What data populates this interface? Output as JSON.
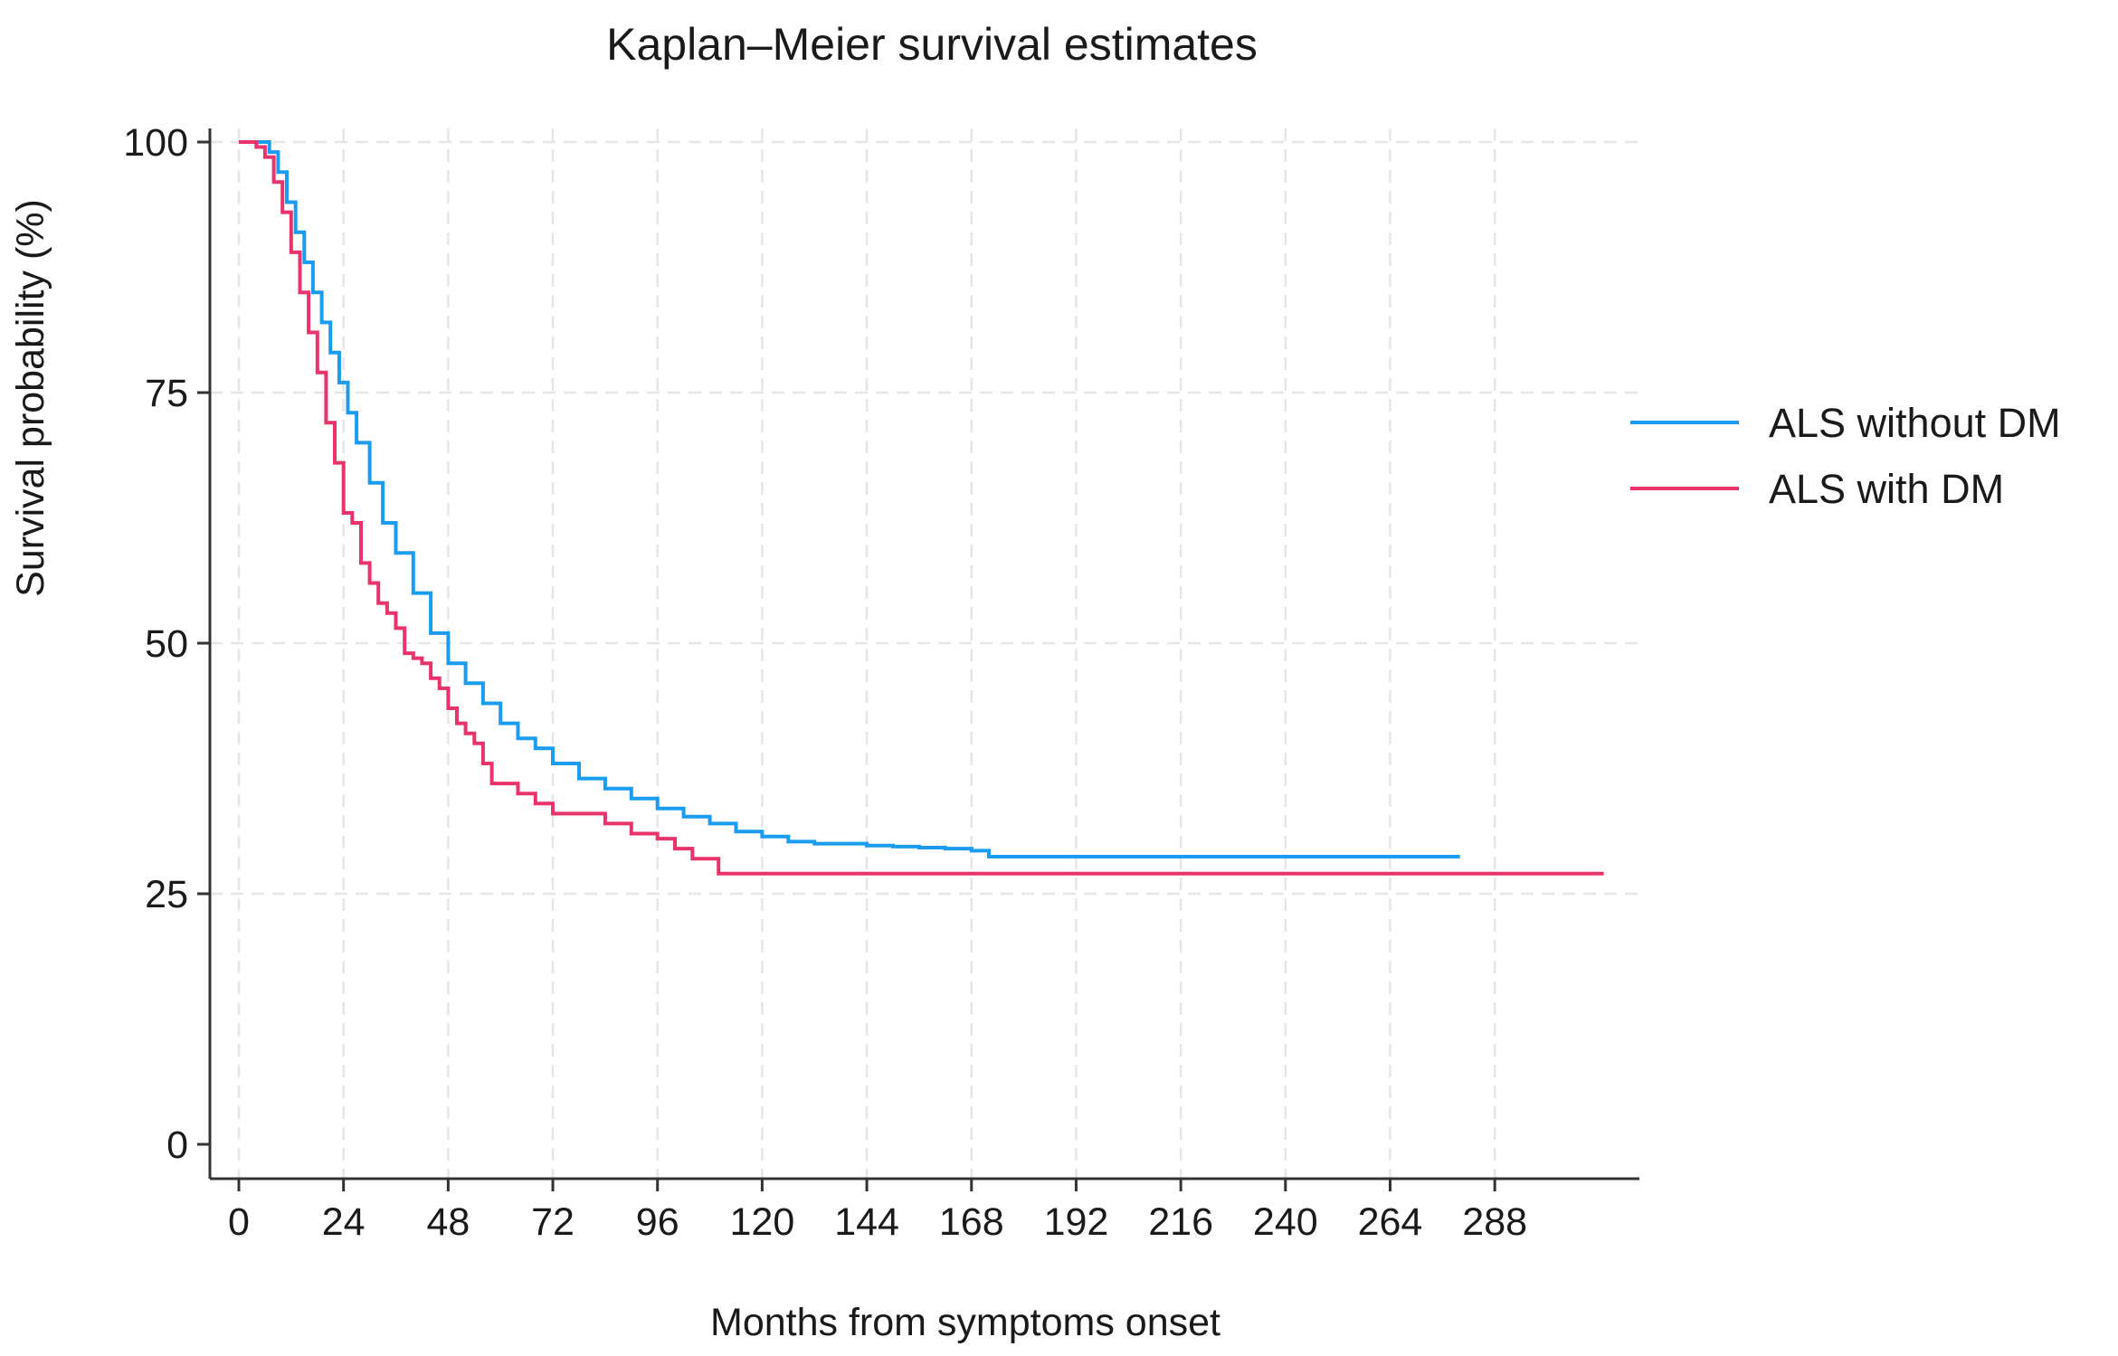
{
  "chart_data": {
    "type": "line",
    "step": true,
    "title": "Kaplan–Meier survival estimates",
    "xlabel": "Months from symptoms onset",
    "ylabel": "Survival probability (%)",
    "xlim": [
      0,
      315
    ],
    "ylim": [
      0,
      100
    ],
    "x_ticks": [
      0,
      24,
      48,
      72,
      96,
      120,
      144,
      168,
      192,
      216,
      240,
      264,
      288
    ],
    "y_ticks": [
      0,
      25,
      50,
      75,
      100
    ],
    "grid": true,
    "legend_position": "right",
    "series": [
      {
        "name": "ALS without DM",
        "color": "#1a9cf0",
        "x": [
          0,
          5,
          7,
          9,
          11,
          13,
          15,
          17,
          19,
          21,
          23,
          25,
          27,
          30,
          33,
          36,
          40,
          44,
          48,
          52,
          56,
          60,
          64,
          68,
          72,
          78,
          84,
          90,
          96,
          102,
          108,
          114,
          120,
          126,
          132,
          138,
          144,
          150,
          156,
          162,
          168,
          172,
          180,
          200,
          240,
          280
        ],
        "y": [
          100,
          100,
          99,
          97,
          94,
          91,
          88,
          85,
          82,
          79,
          76,
          73,
          70,
          66,
          62,
          59,
          55,
          51,
          48,
          46,
          44,
          42,
          40.5,
          39.5,
          38,
          36.5,
          35.5,
          34.5,
          33.5,
          32.7,
          32,
          31.2,
          30.7,
          30.2,
          30,
          30,
          29.8,
          29.7,
          29.6,
          29.5,
          29.3,
          28.7,
          28.7,
          28.7,
          28.7,
          28.7
        ]
      },
      {
        "name": "ALS with DM",
        "color": "#e8336b",
        "x": [
          0,
          2,
          4,
          6,
          8,
          10,
          12,
          14,
          16,
          18,
          20,
          22,
          24,
          26,
          28,
          30,
          32,
          34,
          36,
          38,
          40,
          42,
          44,
          46,
          48,
          50,
          52,
          54,
          56,
          58,
          60,
          64,
          68,
          72,
          76,
          84,
          90,
          96,
          100,
          104,
          110,
          130,
          170,
          250,
          313
        ],
        "y": [
          100,
          100,
          99.5,
          98.5,
          96,
          93,
          89,
          85,
          81,
          77,
          72,
          68,
          63,
          62,
          58,
          56,
          54,
          53,
          51.5,
          49,
          48.5,
          48,
          46.5,
          45.5,
          43.5,
          42,
          41,
          40,
          38,
          36,
          36,
          35,
          34,
          33,
          33,
          32,
          31,
          30.5,
          29.5,
          28.5,
          27,
          27,
          27,
          27,
          27
        ]
      }
    ]
  }
}
